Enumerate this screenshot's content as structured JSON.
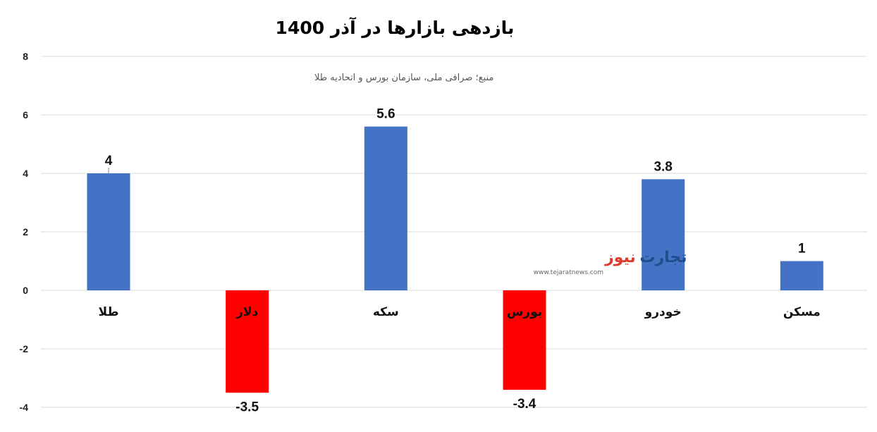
{
  "chart_data": {
    "type": "bar",
    "title": "بازدهی بازارها در آذر 1400",
    "source": "منبع؛ صرافی ملی، سازمان بورس و اتحادیه طلا",
    "categories": [
      "طلا",
      "دلار",
      "سکه",
      "بورس",
      "خودرو",
      "مسکن"
    ],
    "values": [
      4,
      -3.5,
      5.6,
      -3.4,
      3.8,
      1
    ],
    "data_labels": [
      "4",
      "-3.5",
      "5.6",
      "-3.4",
      "3.8",
      "1"
    ],
    "yticks": [
      "8",
      "6",
      "4",
      "2",
      "0",
      "-2",
      "-4"
    ],
    "ylim": [
      -4,
      8
    ],
    "grid": true,
    "colors": {
      "positive": "#4472c4",
      "negative": "#ff0000"
    }
  },
  "watermark": {
    "brand_part1": "تجارت",
    "brand_part2": "نیوز",
    "url": "www.tejaratnews.com",
    "brand_color": "#1f4e8c",
    "accent_color": "#e03a2f"
  }
}
